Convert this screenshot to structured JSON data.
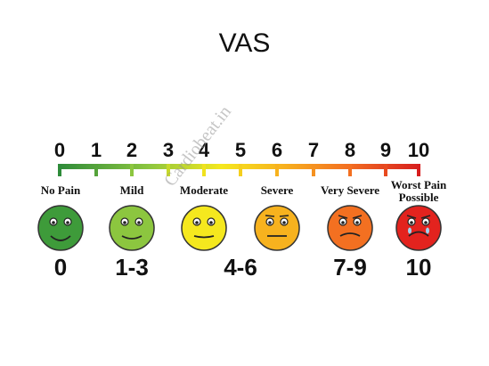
{
  "title": "VAS",
  "ticks": [
    "0",
    "1",
    "2",
    "3",
    "4",
    "5",
    "6",
    "7",
    "8",
    "9",
    "10"
  ],
  "labels": [
    "No Pain",
    "Mild",
    "Moderate",
    "Severe",
    "Very Severe",
    "Worst Pain Possible"
  ],
  "ranges": [
    "0",
    "1-3",
    "4-6",
    "7-9",
    "10"
  ],
  "watermark": "Cardiobeat.in",
  "colors": {
    "face_0": "#3e9b3a",
    "face_mild": "#8cc63f",
    "face_moderate": "#f5e81e",
    "face_severe": "#f7b21e",
    "face_very_severe": "#f37021",
    "face_worst": "#e3231e"
  },
  "faces": [
    "no-pain-face",
    "mild-face",
    "moderate-face",
    "severe-face",
    "very-severe-face",
    "worst-pain-face"
  ]
}
